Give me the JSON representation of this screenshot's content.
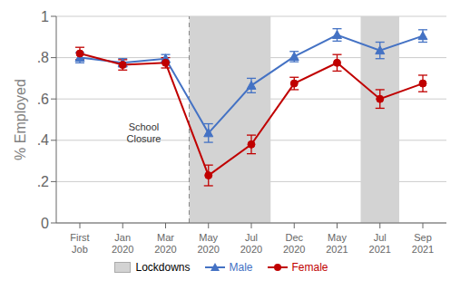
{
  "chart_data": {
    "type": "line",
    "categories": [
      "First\nJob",
      "Jan\n2020",
      "Mar\n2020",
      "May\n2020",
      "Jul\n2020",
      "Dec\n2020",
      "May\n2021",
      "Jul\n2021",
      "Sep\n2021"
    ],
    "series": [
      {
        "name": "Male",
        "color": "#4472C4",
        "marker": "triangle",
        "values": [
          0.8,
          0.775,
          0.795,
          0.435,
          0.665,
          0.805,
          0.91,
          0.835,
          0.905
        ],
        "errors": [
          0.025,
          0.02,
          0.02,
          0.045,
          0.035,
          0.025,
          0.03,
          0.04,
          0.03
        ]
      },
      {
        "name": "Female",
        "color": "#C00000",
        "marker": "circle",
        "values": [
          0.82,
          0.765,
          0.775,
          0.23,
          0.38,
          0.675,
          0.775,
          0.6,
          0.675
        ],
        "errors": [
          0.03,
          0.025,
          0.025,
          0.05,
          0.045,
          0.03,
          0.04,
          0.045,
          0.04
        ]
      }
    ],
    "y_label": "% Employed",
    "ylim": [
      0,
      1.0
    ],
    "yticks": [
      0,
      {
        "value": 0.2,
        "label": ".2"
      },
      {
        "value": 0.4,
        "label": ".4"
      },
      {
        "value": 0.6,
        "label": ".6"
      },
      {
        "value": 0.8,
        "label": ".8"
      },
      1
    ],
    "grid": true,
    "legend": "bottom",
    "shaded_spans": {
      "name": "Lockdowns",
      "color": "#D3D3D3",
      "ranges": [
        [
          "May\n2020",
          "Jul\n2020"
        ],
        [
          "Jul\n2021",
          "Jul\n2021"
        ]
      ]
    },
    "annotations": [
      {
        "text": "School\nClosure",
        "line_after": "Mar\n2020"
      }
    ]
  }
}
